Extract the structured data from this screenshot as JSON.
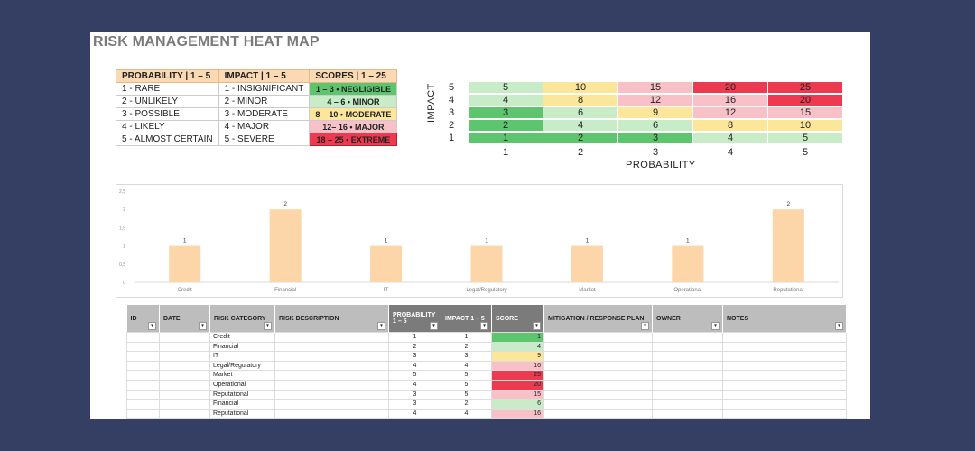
{
  "title": "RISK MANAGEMENT HEAT MAP",
  "colors": {
    "negligible": "#5cc56e",
    "minor": "#c7ecc7",
    "moderate": "#fbe69a",
    "major": "#f8c1c8",
    "extreme": "#ee3a50",
    "legend_header": "#fbd9b2",
    "bar": "#fcd5a8",
    "background": "#353f63"
  },
  "legend": {
    "headers": [
      "PROBABILITY | 1 – 5",
      "IMPACT | 1 – 5",
      "SCORES | 1 – 25"
    ],
    "rows": [
      {
        "probability": "1 - RARE",
        "impact": "1 - INSIGNIFICANT",
        "score": "1 – 3 • NEGLIGIBLE",
        "level": "negligible"
      },
      {
        "probability": "2 - UNLIKELY",
        "impact": "2 - MINOR",
        "score": "4 – 6 • MINOR",
        "level": "minor"
      },
      {
        "probability": "3 - POSSIBLE",
        "impact": "3 - MODERATE",
        "score": "8 – 10 • MODERATE",
        "level": "moderate"
      },
      {
        "probability": "4 - LIKELY",
        "impact": "4 - MAJOR",
        "score": "12– 16 • MAJOR",
        "level": "major"
      },
      {
        "probability": "5 - ALMOST CERTAIN",
        "impact": "5 - SEVERE",
        "score": "18 – 25 • EXTREME",
        "level": "extreme"
      }
    ]
  },
  "heatmap": {
    "ylabel": "IMPACT",
    "xlabel": "PROBABILITY",
    "x_ticks": [
      "1",
      "2",
      "3",
      "4",
      "5"
    ],
    "y_ticks": [
      "5",
      "4",
      "3",
      "2",
      "1"
    ],
    "rows": [
      [
        {
          "v": "5",
          "c": "minor"
        },
        {
          "v": "10",
          "c": "moderate"
        },
        {
          "v": "15",
          "c": "major"
        },
        {
          "v": "20",
          "c": "extreme"
        },
        {
          "v": "25",
          "c": "extreme"
        }
      ],
      [
        {
          "v": "4",
          "c": "minor"
        },
        {
          "v": "8",
          "c": "moderate"
        },
        {
          "v": "12",
          "c": "major"
        },
        {
          "v": "16",
          "c": "major"
        },
        {
          "v": "20",
          "c": "extreme"
        }
      ],
      [
        {
          "v": "3",
          "c": "negligible"
        },
        {
          "v": "6",
          "c": "minor"
        },
        {
          "v": "9",
          "c": "moderate"
        },
        {
          "v": "12",
          "c": "major"
        },
        {
          "v": "15",
          "c": "major"
        }
      ],
      [
        {
          "v": "2",
          "c": "negligible"
        },
        {
          "v": "4",
          "c": "minor"
        },
        {
          "v": "6",
          "c": "minor"
        },
        {
          "v": "8",
          "c": "moderate"
        },
        {
          "v": "10",
          "c": "moderate"
        }
      ],
      [
        {
          "v": "1",
          "c": "negligible"
        },
        {
          "v": "2",
          "c": "negligible"
        },
        {
          "v": "3",
          "c": "negligible"
        },
        {
          "v": "4",
          "c": "minor"
        },
        {
          "v": "5",
          "c": "minor"
        }
      ]
    ]
  },
  "chart_data": {
    "type": "bar",
    "categories": [
      "Credit",
      "Financial",
      "IT",
      "Legal/Regulatory",
      "Market",
      "Operational",
      "Reputational"
    ],
    "values": [
      1,
      2,
      1,
      1,
      1,
      1,
      2
    ],
    "ylim": [
      0,
      2.5
    ],
    "y_ticks": [
      "0",
      "0,5",
      "1",
      "1,5",
      "2",
      "2,5"
    ],
    "data_labels": [
      "1",
      "2",
      "1",
      "1",
      "1",
      "1",
      "2"
    ],
    "grid": false,
    "title": "",
    "xlabel": "",
    "ylabel": ""
  },
  "table": {
    "headers": [
      {
        "label": "ID",
        "dark": false
      },
      {
        "label": "DATE",
        "dark": false
      },
      {
        "label": "RISK CATEGORY",
        "dark": false
      },
      {
        "label": "RISK DESCRIPTION",
        "dark": false
      },
      {
        "label": "PROBABILITY 1 – 5",
        "dark": true
      },
      {
        "label": "IMPACT 1 – 5",
        "dark": true
      },
      {
        "label": "SCORE",
        "dark": true
      },
      {
        "label": "MITIGATION / RESPONSE PLAN",
        "dark": false
      },
      {
        "label": "OWNER",
        "dark": false
      },
      {
        "label": "NOTES",
        "dark": false
      }
    ],
    "filter_glyph": "▾",
    "rows": [
      {
        "category": "Credit",
        "probability": "1",
        "impact": "1",
        "score": "1",
        "level": "negligible"
      },
      {
        "category": "Financial",
        "probability": "2",
        "impact": "2",
        "score": "4",
        "level": "minor"
      },
      {
        "category": "IT",
        "probability": "3",
        "impact": "3",
        "score": "9",
        "level": "moderate"
      },
      {
        "category": "Legal/Regulatory",
        "probability": "4",
        "impact": "4",
        "score": "16",
        "level": "major"
      },
      {
        "category": "Market",
        "probability": "5",
        "impact": "5",
        "score": "25",
        "level": "extreme"
      },
      {
        "category": "Operational",
        "probability": "4",
        "impact": "5",
        "score": "20",
        "level": "extreme"
      },
      {
        "category": "Reputational",
        "probability": "3",
        "impact": "5",
        "score": "15",
        "level": "major"
      },
      {
        "category": "Financial",
        "probability": "3",
        "impact": "2",
        "score": "6",
        "level": "minor"
      },
      {
        "category": "Reputational",
        "probability": "4",
        "impact": "4",
        "score": "16",
        "level": "major"
      }
    ]
  }
}
